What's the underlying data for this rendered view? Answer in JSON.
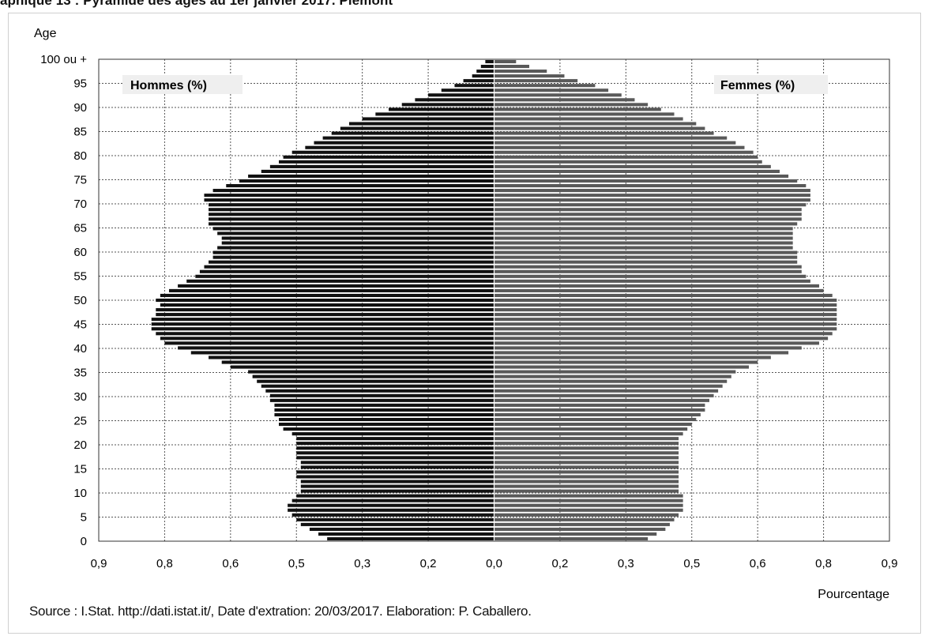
{
  "page": {
    "title": "aphique 13 : Pyramide des âges au 1er janvier 2017. Piémont",
    "source": "Source : I.Stat. http://dati.istat.it/, Date d'extration: 20/03/2017. Elaboration: P. Caballero."
  },
  "chart_data": {
    "type": "bar",
    "orientation": "horizontal-pyramid",
    "ylabel": "Age",
    "xlabel": "Pourcentage",
    "x_range": [
      -0.9,
      0.9
    ],
    "y_ticks": [
      "0",
      "5",
      "10",
      "15",
      "20",
      "25",
      "30",
      "35",
      "40",
      "45",
      "50",
      "55",
      "60",
      "65",
      "70",
      "75",
      "80",
      "85",
      "90",
      "95",
      "100 ou +"
    ],
    "x_tick_labels": [
      "0,9",
      "0,8",
      "0,6",
      "0,5",
      "0,3",
      "0,2",
      "0,0",
      "0,2",
      "0,3",
      "0,5",
      "0,6",
      "0,8",
      "0,9"
    ],
    "grid": true,
    "colors": {
      "men": "#111111",
      "women": "#595959",
      "grid": "#555555"
    },
    "series": [
      {
        "name": "Hommes (%)",
        "side": "left",
        "values": [
          0.38,
          0.4,
          0.42,
          0.44,
          0.45,
          0.46,
          0.47,
          0.47,
          0.46,
          0.45,
          0.44,
          0.44,
          0.44,
          0.45,
          0.45,
          0.44,
          0.44,
          0.45,
          0.45,
          0.45,
          0.45,
          0.45,
          0.46,
          0.48,
          0.49,
          0.49,
          0.5,
          0.5,
          0.5,
          0.51,
          0.51,
          0.52,
          0.53,
          0.54,
          0.55,
          0.56,
          0.6,
          0.62,
          0.65,
          0.69,
          0.72,
          0.75,
          0.76,
          0.77,
          0.78,
          0.78,
          0.78,
          0.77,
          0.77,
          0.76,
          0.77,
          0.76,
          0.74,
          0.72,
          0.7,
          0.68,
          0.67,
          0.66,
          0.65,
          0.64,
          0.64,
          0.63,
          0.62,
          0.62,
          0.63,
          0.64,
          0.65,
          0.65,
          0.65,
          0.65,
          0.65,
          0.66,
          0.66,
          0.64,
          0.61,
          0.58,
          0.56,
          0.53,
          0.51,
          0.49,
          0.48,
          0.46,
          0.43,
          0.41,
          0.39,
          0.37,
          0.35,
          0.33,
          0.3,
          0.27,
          0.24,
          0.21,
          0.18,
          0.15,
          0.12,
          0.09,
          0.07,
          0.05,
          0.04,
          0.03,
          0.02
        ]
      },
      {
        "name": "Femmes (%)",
        "side": "right",
        "values": [
          0.35,
          0.37,
          0.39,
          0.4,
          0.41,
          0.42,
          0.43,
          0.43,
          0.43,
          0.43,
          0.42,
          0.42,
          0.42,
          0.42,
          0.42,
          0.42,
          0.42,
          0.42,
          0.42,
          0.42,
          0.42,
          0.42,
          0.43,
          0.44,
          0.45,
          0.46,
          0.47,
          0.48,
          0.48,
          0.49,
          0.5,
          0.51,
          0.52,
          0.53,
          0.54,
          0.55,
          0.58,
          0.6,
          0.63,
          0.67,
          0.7,
          0.74,
          0.76,
          0.77,
          0.78,
          0.78,
          0.78,
          0.78,
          0.78,
          0.78,
          0.78,
          0.77,
          0.75,
          0.74,
          0.72,
          0.71,
          0.7,
          0.7,
          0.69,
          0.69,
          0.69,
          0.68,
          0.68,
          0.68,
          0.68,
          0.68,
          0.69,
          0.7,
          0.7,
          0.7,
          0.71,
          0.72,
          0.72,
          0.72,
          0.71,
          0.69,
          0.67,
          0.65,
          0.63,
          0.61,
          0.6,
          0.59,
          0.57,
          0.55,
          0.53,
          0.5,
          0.48,
          0.46,
          0.43,
          0.41,
          0.38,
          0.35,
          0.32,
          0.29,
          0.26,
          0.23,
          0.19,
          0.16,
          0.12,
          0.08,
          0.05
        ]
      }
    ]
  }
}
